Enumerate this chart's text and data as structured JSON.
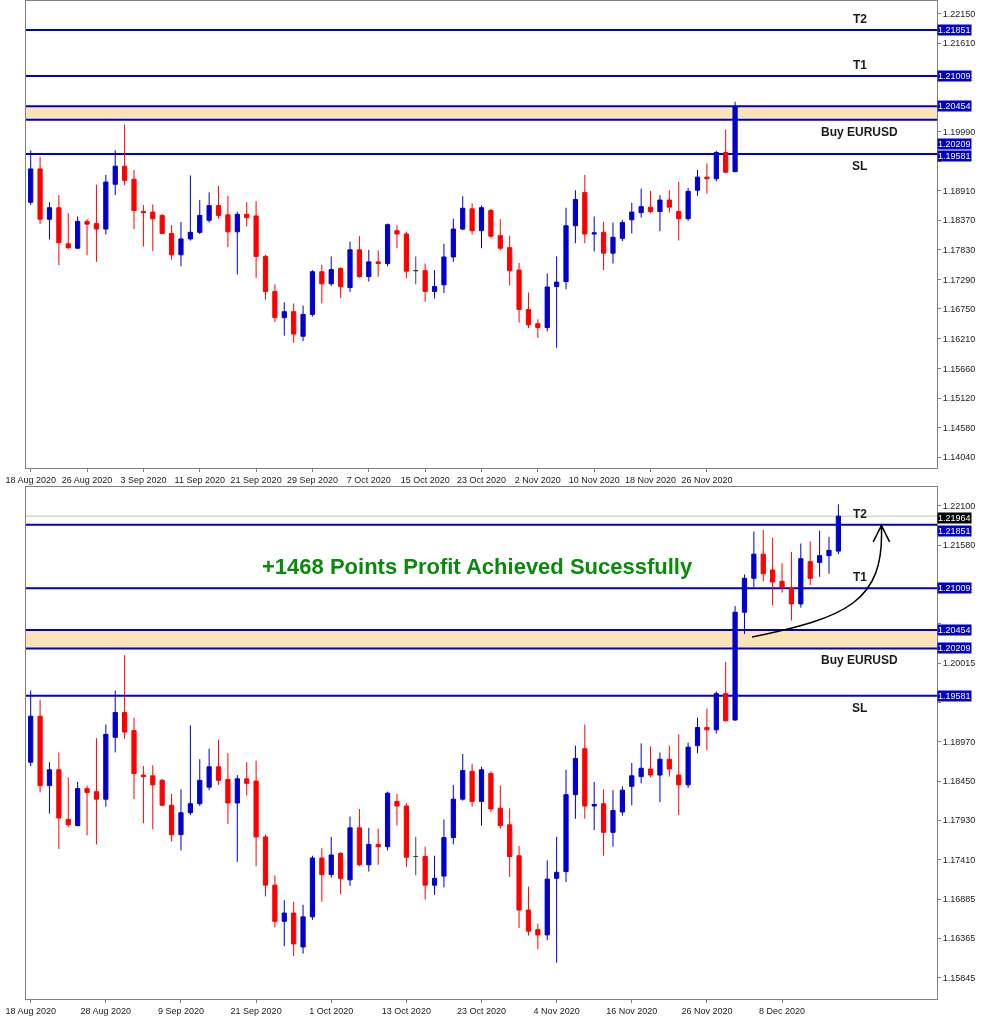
{
  "chart_data": [
    {
      "type": "candlestick",
      "categories": [
        "18 Aug 2020",
        null,
        null,
        null,
        null,
        null,
        "26 Aug 2020",
        null,
        null,
        null,
        null,
        null,
        "3 Sep 2020",
        null,
        null,
        null,
        null,
        null,
        "11 Sep 2020",
        null,
        null,
        null,
        null,
        null,
        "21 Sep 2020",
        null,
        null,
        null,
        null,
        null,
        "29 Sep 2020",
        null,
        null,
        null,
        null,
        null,
        "7 Oct 2020",
        null,
        null,
        null,
        null,
        null,
        "15 Oct 2020",
        null,
        null,
        null,
        null,
        null,
        "23 Oct 2020",
        null,
        null,
        null,
        null,
        null,
        "2 Nov 2020",
        null,
        null,
        null,
        null,
        null,
        "10 Nov 2020",
        null,
        null,
        null,
        null,
        null,
        "18 Nov 2020",
        null,
        null,
        null,
        null,
        null,
        "26 Nov 2020",
        null,
        null,
        null,
        null,
        null,
        null,
        null,
        null,
        null,
        null,
        null,
        null,
        null,
        null,
        null,
        null,
        null,
        null,
        null,
        null,
        null,
        null,
        null,
        null
      ],
      "ohlc": [
        [
          1.187,
          1.1965,
          1.1865,
          1.1931
        ],
        [
          1.1931,
          1.1953,
          1.183,
          1.1839
        ],
        [
          1.1839,
          1.187,
          1.1802,
          1.186
        ],
        [
          1.186,
          1.1883,
          1.1755,
          1.1796
        ],
        [
          1.1794,
          1.185,
          1.1784,
          1.1787
        ],
        [
          1.1786,
          1.1844,
          1.1785,
          1.1835
        ],
        [
          1.1835,
          1.1839,
          1.1773,
          1.183
        ],
        [
          1.1831,
          1.1902,
          1.1761,
          1.1821
        ],
        [
          1.1821,
          1.192,
          1.1811,
          1.1907
        ],
        [
          1.1903,
          1.1965,
          1.1883,
          1.1936
        ],
        [
          1.1936,
          1.2012,
          1.1901,
          1.191
        ],
        [
          1.1912,
          1.1929,
          1.1821,
          1.1855
        ],
        [
          1.1853,
          1.1865,
          1.1789,
          1.1851
        ],
        [
          1.1852,
          1.1866,
          1.1781,
          1.184
        ],
        [
          1.1846,
          1.1848,
          1.1812,
          1.1813
        ],
        [
          1.1813,
          1.1828,
          1.1765,
          1.1774
        ],
        [
          1.1774,
          1.1834,
          1.1753,
          1.1803
        ],
        [
          1.1803,
          1.1919,
          1.18,
          1.1815
        ],
        [
          1.1815,
          1.1874,
          1.1812,
          1.1846
        ],
        [
          1.1837,
          1.1888,
          1.1833,
          1.1864
        ],
        [
          1.1864,
          1.19,
          1.184,
          1.1846
        ],
        [
          1.1847,
          1.1882,
          1.1788,
          1.1816
        ],
        [
          1.1816,
          1.1853,
          1.1738,
          1.1848
        ],
        [
          1.1848,
          1.187,
          1.1826,
          1.1842
        ],
        [
          1.1845,
          1.1872,
          1.1732,
          1.1771
        ],
        [
          1.1771,
          1.1774,
          1.1692,
          1.1707
        ],
        [
          1.1707,
          1.172,
          1.1651,
          1.1659
        ],
        [
          1.1659,
          1.1687,
          1.1626,
          1.167
        ],
        [
          1.167,
          1.1685,
          1.1613,
          1.1629
        ],
        [
          1.1625,
          1.1681,
          1.1616,
          1.1665
        ],
        [
          1.1665,
          1.1746,
          1.1661,
          1.1743
        ],
        [
          1.1743,
          1.1756,
          1.1685,
          1.1721
        ],
        [
          1.1721,
          1.1771,
          1.1717,
          1.1747
        ],
        [
          1.1749,
          1.1751,
          1.1695,
          1.1716
        ],
        [
          1.1714,
          1.1798,
          1.1706,
          1.1783
        ],
        [
          1.1783,
          1.1808,
          1.1732,
          1.1734
        ],
        [
          1.1734,
          1.1783,
          1.1725,
          1.1761
        ],
        [
          1.1761,
          1.1782,
          1.1734,
          1.1758
        ],
        [
          1.1758,
          1.1831,
          1.1753,
          1.1829
        ],
        [
          1.1818,
          1.1828,
          1.1786,
          1.1812
        ],
        [
          1.1812,
          1.1816,
          1.1731,
          1.1744
        ],
        [
          1.1745,
          1.1771,
          1.172,
          1.1745
        ],
        [
          1.1745,
          1.1758,
          1.1688,
          1.1707
        ],
        [
          1.1707,
          1.1746,
          1.1694,
          1.1716
        ],
        [
          1.1719,
          1.1794,
          1.1704,
          1.177
        ],
        [
          1.177,
          1.184,
          1.1761,
          1.1821
        ],
        [
          1.1821,
          1.1881,
          1.1819,
          1.1859
        ],
        [
          1.1858,
          1.1868,
          1.1811,
          1.1818
        ],
        [
          1.1818,
          1.1864,
          1.1786,
          1.186
        ],
        [
          1.1855,
          1.1858,
          1.1804,
          1.1808
        ],
        [
          1.1809,
          1.1839,
          1.1782,
          1.1786
        ],
        [
          1.1787,
          1.1809,
          1.1718,
          1.1745
        ],
        [
          1.1746,
          1.1759,
          1.165,
          1.1674
        ],
        [
          1.1674,
          1.1705,
          1.164,
          1.1646
        ],
        [
          1.1648,
          1.1656,
          1.1622,
          1.1641
        ],
        [
          1.1641,
          1.174,
          1.1634,
          1.1715
        ],
        [
          1.1716,
          1.1771,
          1.1604,
          1.1724
        ],
        [
          1.1725,
          1.186,
          1.1711,
          1.1827
        ],
        [
          1.1827,
          1.1892,
          1.1795,
          1.1875
        ],
        [
          1.1888,
          1.192,
          1.1795,
          1.1812
        ],
        [
          1.1812,
          1.1844,
          1.178,
          1.1814
        ],
        [
          1.1815,
          1.1834,
          1.1746,
          1.1777
        ],
        [
          1.1777,
          1.1833,
          1.1758,
          1.1806
        ],
        [
          1.1804,
          1.1838,
          1.1799,
          1.1833
        ],
        [
          1.1838,
          1.1869,
          1.1813,
          1.1852
        ],
        [
          1.1851,
          1.1895,
          1.1842,
          1.1862
        ],
        [
          1.1861,
          1.1891,
          1.185,
          1.1853
        ],
        [
          1.1853,
          1.1883,
          1.1817,
          1.1874
        ],
        [
          1.1874,
          1.1892,
          1.1851,
          1.1861
        ],
        [
          1.1853,
          1.1907,
          1.18,
          1.184
        ],
        [
          1.184,
          1.1896,
          1.1836,
          1.189
        ],
        [
          1.1892,
          1.1929,
          1.1882,
          1.1916
        ],
        [
          1.1916,
          1.1941,
          1.1886,
          1.1913
        ],
        [
          1.1913,
          1.1964,
          1.1908,
          1.1961
        ],
        [
          1.1961,
          1.2003,
          1.1924,
          1.1925
        ],
        [
          1.1926,
          1.2054,
          1.1925,
          1.2045
        ],
        null,
        null,
        null,
        null,
        null,
        null,
        null,
        null,
        null,
        null,
        null,
        null,
        null,
        null,
        null,
        null,
        null,
        null,
        null,
        null,
        null
      ],
      "colors": [
        "#0000cc",
        "#ff0000",
        "#0000cc",
        "#ff0000",
        "#ff0000",
        "#0000cc",
        "#ff0000",
        "#ff0000",
        "#0000cc",
        "#0000cc",
        "#ff0000",
        "#ff0000",
        "#ff0000",
        "#ff0000",
        "#ff0000",
        "#ff0000",
        "#0000cc",
        "#0000cc",
        "#0000cc",
        "#0000cc",
        "#ff0000",
        "#ff0000",
        "#0000cc",
        "#ff0000",
        "#ff0000",
        "#ff0000",
        "#ff0000",
        "#0000cc",
        "#ff0000",
        "#0000cc",
        "#0000cc",
        "#ff0000",
        "#0000cc",
        "#ff0000",
        "#0000cc",
        "#ff0000",
        "#0000cc",
        "#ff0000",
        "#0000cc",
        "#ff0000",
        "#ff0000",
        "#404040",
        "#ff0000",
        "#0000cc",
        "#0000cc",
        "#0000cc",
        "#0000cc",
        "#ff0000",
        "#0000cc",
        "#ff0000",
        "#ff0000",
        "#ff0000",
        "#ff0000",
        "#ff0000",
        "#ff0000",
        "#0000cc",
        "#0000cc",
        "#0000cc",
        "#0000cc",
        "#ff0000",
        "#0000cc",
        "#ff0000",
        "#0000cc",
        "#0000cc",
        "#0000cc",
        "#0000cc",
        "#ff0000",
        "#0000cc",
        "#ff0000",
        "#ff0000",
        "#0000cc",
        "#0000cc",
        "#ff0000",
        "#0000cc",
        "#ff0000",
        "#0000cc",
        null,
        null,
        null,
        null,
        null,
        null,
        null,
        null,
        null,
        null,
        null,
        null,
        null,
        null,
        null,
        null,
        null,
        null,
        null,
        null,
        null
      ],
      "ylim": [
        1.1384,
        1.2238
      ],
      "yticks": [
        {
          "value": 1.2215,
          "label": "1.22150"
        },
        {
          "value": 1.2161,
          "label": "1.21610"
        },
        {
          "value": 1.2107,
          "label": null
        },
        {
          "value": 1.2053,
          "label": null
        },
        {
          "value": 1.1999,
          "label": "1.19990"
        },
        {
          "value": 1.1945,
          "label": null
        },
        {
          "value": 1.1891,
          "label": "1.18910"
        },
        {
          "value": 1.1837,
          "label": "1.18370"
        },
        {
          "value": 1.1783,
          "label": "1.17830"
        },
        {
          "value": 1.1729,
          "label": "1.17290"
        },
        {
          "value": 1.1675,
          "label": "1.16750"
        },
        {
          "value": 1.1621,
          "label": "1.16210"
        },
        {
          "value": 1.1566,
          "label": "1.15660"
        },
        {
          "value": 1.1512,
          "label": "1.15120"
        },
        {
          "value": 1.1458,
          "label": "1.14580"
        },
        {
          "value": 1.1404,
          "label": "1.14040"
        }
      ],
      "ref_lines": [
        {
          "axis": "y",
          "value": 1.21851,
          "label": "1.21851",
          "color": "#0000cc"
        },
        {
          "axis": "y",
          "value": 1.21009,
          "label": "1.21009",
          "color": "#0000cc"
        },
        {
          "axis": "y",
          "value": 1.20454,
          "label": "1.20454",
          "color": "#0000cc"
        },
        {
          "axis": "y",
          "value": 1.20209,
          "label": "1.20209",
          "color": "#0000cc"
        },
        {
          "axis": "y",
          "value": 1.19581,
          "label": "1.19581",
          "color": "#0000cc"
        }
      ],
      "bands": [
        {
          "axis": "y",
          "from": 1.20209,
          "to": 1.20454,
          "color": "#fde3b8"
        }
      ],
      "annotations": [
        {
          "text": "T2",
          "y": 1.21851
        },
        {
          "text": "T1",
          "y": 1.21009
        },
        {
          "text": "Buy EURUSD",
          "y": 1.20209
        },
        {
          "text": "SL",
          "y": 1.19581
        }
      ]
    },
    {
      "type": "candlestick",
      "categories": [
        "18 Aug 2020",
        null,
        null,
        null,
        null,
        null,
        null,
        null,
        "28 Aug 2020",
        null,
        null,
        null,
        null,
        null,
        null,
        null,
        "9 Sep 2020",
        null,
        null,
        null,
        null,
        null,
        null,
        null,
        "21 Sep 2020",
        null,
        null,
        null,
        null,
        null,
        null,
        null,
        "1 Oct 2020",
        null,
        null,
        null,
        null,
        null,
        null,
        null,
        "13 Oct 2020",
        null,
        null,
        null,
        null,
        null,
        null,
        null,
        "23 Oct 2020",
        null,
        null,
        null,
        null,
        null,
        null,
        null,
        "4 Nov 2020",
        null,
        null,
        null,
        null,
        null,
        null,
        null,
        "16 Nov 2020",
        null,
        null,
        null,
        null,
        null,
        null,
        null,
        "26 Nov 2020",
        null,
        null,
        null,
        null,
        null,
        null,
        null,
        "8 Dec 2020",
        null,
        null,
        null,
        null,
        null,
        null,
        null,
        null,
        null,
        null,
        null,
        null,
        null,
        null,
        null,
        null
      ],
      "ohlc": [
        [
          1.187,
          1.1965,
          1.1865,
          1.1931
        ],
        [
          1.1931,
          1.1953,
          1.183,
          1.1839
        ],
        [
          1.1839,
          1.187,
          1.1802,
          1.186
        ],
        [
          1.186,
          1.1883,
          1.1755,
          1.1796
        ],
        [
          1.1794,
          1.185,
          1.1784,
          1.1787
        ],
        [
          1.1786,
          1.1844,
          1.1785,
          1.1835
        ],
        [
          1.1835,
          1.1839,
          1.1773,
          1.183
        ],
        [
          1.1831,
          1.1902,
          1.1761,
          1.1821
        ],
        [
          1.1821,
          1.192,
          1.1811,
          1.1907
        ],
        [
          1.1903,
          1.1965,
          1.1883,
          1.1936
        ],
        [
          1.1936,
          1.2012,
          1.1901,
          1.191
        ],
        [
          1.1912,
          1.1929,
          1.1821,
          1.1855
        ],
        [
          1.1853,
          1.1865,
          1.1789,
          1.1851
        ],
        [
          1.1852,
          1.1866,
          1.1781,
          1.184
        ],
        [
          1.1846,
          1.1848,
          1.1812,
          1.1813
        ],
        [
          1.1813,
          1.1828,
          1.1765,
          1.1774
        ],
        [
          1.1774,
          1.1834,
          1.1753,
          1.1803
        ],
        [
          1.1803,
          1.1919,
          1.18,
          1.1815
        ],
        [
          1.1815,
          1.1874,
          1.1812,
          1.1846
        ],
        [
          1.1837,
          1.1888,
          1.1833,
          1.1864
        ],
        [
          1.1864,
          1.19,
          1.184,
          1.1846
        ],
        [
          1.1847,
          1.1882,
          1.1788,
          1.1816
        ],
        [
          1.1816,
          1.1853,
          1.1738,
          1.1848
        ],
        [
          1.1848,
          1.187,
          1.1826,
          1.1842
        ],
        [
          1.1845,
          1.1872,
          1.1732,
          1.1771
        ],
        [
          1.1771,
          1.1774,
          1.1692,
          1.1707
        ],
        [
          1.1707,
          1.172,
          1.1651,
          1.1659
        ],
        [
          1.1659,
          1.1687,
          1.1626,
          1.167
        ],
        [
          1.167,
          1.1685,
          1.1613,
          1.1629
        ],
        [
          1.1625,
          1.1681,
          1.1616,
          1.1665
        ],
        [
          1.1665,
          1.1746,
          1.1661,
          1.1743
        ],
        [
          1.1743,
          1.1756,
          1.1685,
          1.1721
        ],
        [
          1.1721,
          1.1771,
          1.1717,
          1.1747
        ],
        [
          1.1749,
          1.1751,
          1.1695,
          1.1716
        ],
        [
          1.1714,
          1.1798,
          1.1706,
          1.1783
        ],
        [
          1.1783,
          1.1808,
          1.1732,
          1.1734
        ],
        [
          1.1734,
          1.1783,
          1.1725,
          1.1761
        ],
        [
          1.1761,
          1.1782,
          1.1734,
          1.1758
        ],
        [
          1.1758,
          1.1831,
          1.1753,
          1.1829
        ],
        [
          1.1818,
          1.1828,
          1.1786,
          1.1812
        ],
        [
          1.1812,
          1.1816,
          1.1731,
          1.1744
        ],
        [
          1.1745,
          1.1771,
          1.172,
          1.1745
        ],
        [
          1.1745,
          1.1758,
          1.1688,
          1.1707
        ],
        [
          1.1707,
          1.1746,
          1.1694,
          1.1716
        ],
        [
          1.1719,
          1.1794,
          1.1704,
          1.177
        ],
        [
          1.177,
          1.184,
          1.1761,
          1.1821
        ],
        [
          1.1821,
          1.1881,
          1.1819,
          1.1859
        ],
        [
          1.1858,
          1.1868,
          1.1811,
          1.1818
        ],
        [
          1.1818,
          1.1864,
          1.1786,
          1.186
        ],
        [
          1.1855,
          1.1858,
          1.1804,
          1.1808
        ],
        [
          1.1809,
          1.1839,
          1.1782,
          1.1786
        ],
        [
          1.1787,
          1.1809,
          1.1718,
          1.1745
        ],
        [
          1.1746,
          1.1759,
          1.165,
          1.1674
        ],
        [
          1.1674,
          1.1705,
          1.164,
          1.1646
        ],
        [
          1.1648,
          1.1656,
          1.1622,
          1.1641
        ],
        [
          1.1641,
          1.174,
          1.1634,
          1.1715
        ],
        [
          1.1716,
          1.1771,
          1.1604,
          1.1724
        ],
        [
          1.1725,
          1.186,
          1.1711,
          1.1827
        ],
        [
          1.1827,
          1.1892,
          1.1795,
          1.1875
        ],
        [
          1.1888,
          1.192,
          1.1795,
          1.1812
        ],
        [
          1.1812,
          1.1844,
          1.178,
          1.1814
        ],
        [
          1.1815,
          1.1834,
          1.1746,
          1.1777
        ],
        [
          1.1777,
          1.1833,
          1.1758,
          1.1806
        ],
        [
          1.1804,
          1.1838,
          1.1799,
          1.1833
        ],
        [
          1.1838,
          1.1869,
          1.1813,
          1.1852
        ],
        [
          1.1851,
          1.1895,
          1.1842,
          1.1862
        ],
        [
          1.1861,
          1.1891,
          1.185,
          1.1853
        ],
        [
          1.1853,
          1.1883,
          1.1817,
          1.1874
        ],
        [
          1.1874,
          1.1892,
          1.1851,
          1.1861
        ],
        [
          1.1853,
          1.1907,
          1.18,
          1.184
        ],
        [
          1.184,
          1.1896,
          1.1836,
          1.189
        ],
        [
          1.1892,
          1.1929,
          1.1882,
          1.1916
        ],
        [
          1.1916,
          1.1941,
          1.1886,
          1.1913
        ],
        [
          1.1913,
          1.1964,
          1.1908,
          1.1961
        ],
        [
          1.1961,
          1.2003,
          1.1924,
          1.1925
        ],
        [
          1.1926,
          1.2077,
          1.1925,
          1.2069
        ],
        [
          1.2069,
          1.2119,
          1.204,
          1.2114
        ],
        [
          1.2114,
          1.2176,
          1.2102,
          1.2146
        ],
        [
          1.2146,
          1.2178,
          1.211,
          1.212
        ],
        [
          1.2125,
          1.2168,
          1.2078,
          1.2109
        ],
        [
          1.211,
          1.2134,
          1.2095,
          1.2102
        ],
        [
          1.2101,
          1.2149,
          1.2058,
          1.208
        ],
        [
          1.208,
          1.216,
          1.2075,
          1.214
        ],
        [
          1.2136,
          1.2163,
          1.2105,
          1.2114
        ],
        [
          1.2135,
          1.2177,
          1.2116,
          1.2144
        ],
        [
          1.2144,
          1.2169,
          1.212,
          1.2151
        ],
        [
          1.215,
          1.2212,
          1.2146,
          1.21964
        ],
        null,
        null,
        null,
        null,
        null,
        null,
        null,
        null,
        null,
        null
      ],
      "colors": [
        "#0000cc",
        "#ff0000",
        "#0000cc",
        "#ff0000",
        "#ff0000",
        "#0000cc",
        "#ff0000",
        "#ff0000",
        "#0000cc",
        "#0000cc",
        "#ff0000",
        "#ff0000",
        "#ff0000",
        "#ff0000",
        "#ff0000",
        "#ff0000",
        "#0000cc",
        "#0000cc",
        "#0000cc",
        "#0000cc",
        "#ff0000",
        "#ff0000",
        "#0000cc",
        "#ff0000",
        "#ff0000",
        "#ff0000",
        "#ff0000",
        "#0000cc",
        "#ff0000",
        "#0000cc",
        "#0000cc",
        "#ff0000",
        "#0000cc",
        "#ff0000",
        "#0000cc",
        "#ff0000",
        "#0000cc",
        "#ff0000",
        "#0000cc",
        "#ff0000",
        "#ff0000",
        "#404040",
        "#ff0000",
        "#0000cc",
        "#0000cc",
        "#0000cc",
        "#0000cc",
        "#ff0000",
        "#0000cc",
        "#ff0000",
        "#ff0000",
        "#ff0000",
        "#ff0000",
        "#ff0000",
        "#ff0000",
        "#0000cc",
        "#0000cc",
        "#0000cc",
        "#0000cc",
        "#ff0000",
        "#0000cc",
        "#ff0000",
        "#0000cc",
        "#0000cc",
        "#0000cc",
        "#0000cc",
        "#ff0000",
        "#0000cc",
        "#ff0000",
        "#ff0000",
        "#0000cc",
        "#0000cc",
        "#ff0000",
        "#0000cc",
        "#ff0000",
        "#0000cc",
        "#0000cc",
        "#0000cc",
        "#ff0000",
        "#ff0000",
        "#ff0000",
        "#ff0000",
        "#0000cc",
        "#ff0000",
        "#0000cc",
        "#0000cc",
        "#0000cc",
        null,
        null,
        null,
        null,
        null,
        null,
        null,
        null,
        null,
        null
      ],
      "ylim": [
        1.1556,
        1.2235
      ],
      "yticks": [
        {
          "value": 1.221,
          "label": "1.22100"
        },
        {
          "value": 1.2158,
          "label": "1.21580"
        },
        {
          "value": 1.21055,
          "label": null
        },
        {
          "value": 1.20535,
          "label": null
        },
        1.20015,
        {
          "value": 1.19495,
          "label": null
        },
        {
          "value": 1.1897,
          "label": "1.18970"
        },
        {
          "value": 1.1845,
          "label": "1.18450"
        },
        {
          "value": 1.1793,
          "label": "1.17930"
        },
        {
          "value": 1.1741,
          "label": "1.17410"
        },
        1.16885,
        1.16365,
        1.15845
      ],
      "ref_lines": [
        {
          "axis": "y",
          "value": 1.21851,
          "label": "1.21851",
          "color": "#0000cc"
        },
        {
          "axis": "y",
          "value": 1.21009,
          "label": "1.21009",
          "color": "#0000cc"
        },
        {
          "axis": "y",
          "value": 1.20454,
          "label": "1.20454",
          "color": "#0000cc"
        },
        {
          "axis": "y",
          "value": 1.20209,
          "label": "1.20209",
          "color": "#0000cc"
        },
        {
          "axis": "y",
          "value": 1.19581,
          "label": "1.19581",
          "color": "#0000cc"
        },
        {
          "axis": "y",
          "value": 1.21964,
          "label": "1.21964",
          "color": "#c0c0c0"
        }
      ],
      "bands": [
        {
          "axis": "y",
          "from": 1.20209,
          "to": 1.20454,
          "color": "#fde3b8"
        }
      ],
      "annotations": [
        "+1468 Points Profit Achieved Sucessfully",
        {
          "text": "T2",
          "y": 1.21851
        },
        {
          "text": "T1",
          "y": 1.21009
        },
        {
          "text": "Buy EURUSD",
          "y": 1.20209
        },
        {
          "text": "SL",
          "y": 1.19581
        }
      ]
    }
  ]
}
